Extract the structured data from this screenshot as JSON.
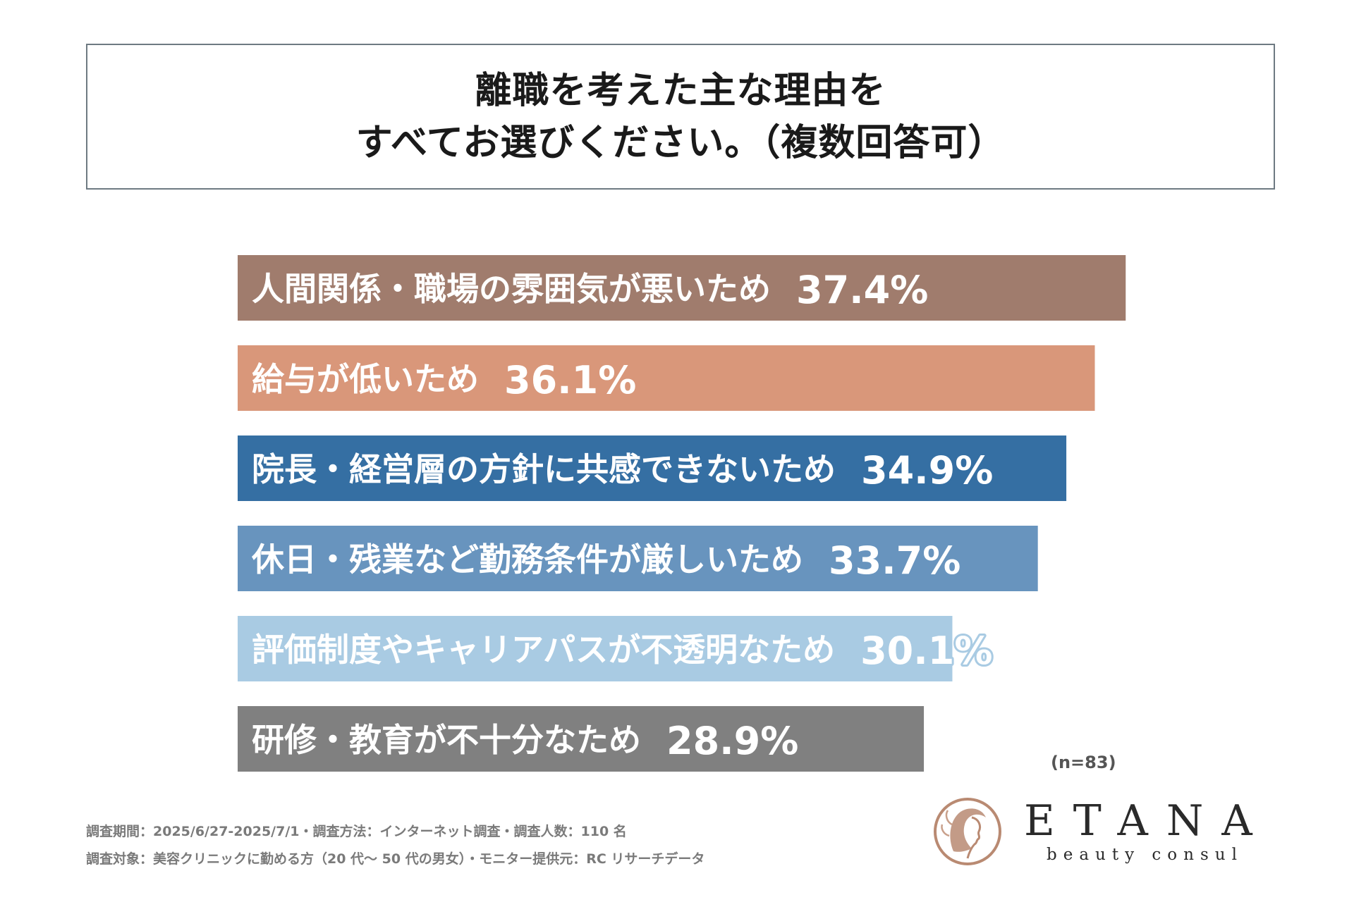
{
  "title": {
    "line1": "離職を考えた主な理由を",
    "line2": "すべてお選びください。（複数回答可）"
  },
  "chart_data": {
    "type": "bar",
    "orientation": "horizontal",
    "unit": "%",
    "xlim": [
      0,
      40
    ],
    "categories": [
      "人間関係・職場の雰囲気が悪いため",
      "給与が低いため",
      "院長・経営層の方針に共感できないため",
      "休日・残業など勤務条件が厳しいため",
      "評価制度やキャリアパスが不透明なため",
      "研修・教育が不十分なため"
    ],
    "values": [
      37.4,
      36.1,
      34.9,
      33.7,
      30.1,
      28.9
    ],
    "value_labels": [
      "37.4%",
      "36.1%",
      "34.9%",
      "33.7%",
      "30.1%",
      "28.9%"
    ],
    "colors": [
      "#a07c6d",
      "#d9977a",
      "#356fa3",
      "#6894be",
      "#a9cbe3",
      "#808080"
    ],
    "outline_colors": [
      "#a07c6d",
      "#d9977a",
      "#356fa3",
      "#6894be",
      "#a9cbe3",
      "#808080"
    ],
    "grid": false,
    "legend": "none"
  },
  "sample_note": "(n=83)",
  "footer": {
    "line1": "調査期間：2025/6/27-2025/7/1・調査方法：インターネット調査・調査人数：110 名",
    "line2": "調査対象：美容クリニックに勤める方（20 代〜 50 代の男女）・モニター提供元：RC リサーチデータ"
  },
  "logo": {
    "name": "ETANA",
    "tagline": "beauty consul",
    "accent_color": "#b98a72"
  }
}
